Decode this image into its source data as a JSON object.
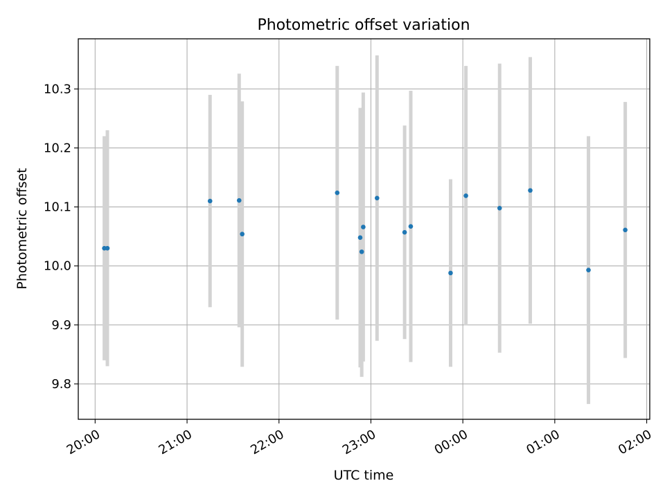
{
  "chart_data": {
    "type": "scatter",
    "title": "Photometric offset variation",
    "xlabel": "UTC time",
    "ylabel": "Photometric offset",
    "x_ticks": [
      "20:00",
      "21:00",
      "22:00",
      "23:00",
      "00:00",
      "01:00",
      "02:00"
    ],
    "y_ticks": [
      "9.8",
      "9.9",
      "10.0",
      "10.1",
      "10.2",
      "10.3"
    ],
    "xlim": [
      "19:49",
      "02:02"
    ],
    "ylim": [
      9.74,
      10.385
    ],
    "grid": true,
    "x": [
      "20:06",
      "20:08",
      "21:15",
      "21:34",
      "21:36",
      "22:38",
      "22:53",
      "22:54",
      "22:55",
      "23:04",
      "23:22",
      "23:26",
      "23:52",
      "00:02",
      "00:24",
      "00:44",
      "01:22",
      "01:46"
    ],
    "y": [
      10.03,
      10.03,
      10.11,
      10.111,
      10.054,
      10.124,
      10.048,
      10.024,
      10.066,
      10.115,
      10.057,
      10.067,
      9.988,
      10.119,
      10.098,
      10.128,
      9.993,
      10.061
    ],
    "y_err": [
      0.19,
      0.2,
      0.18,
      0.215,
      0.225,
      0.215,
      0.22,
      0.212,
      0.228,
      0.242,
      0.181,
      0.23,
      0.159,
      0.22,
      0.245,
      0.226,
      0.227,
      0.217
    ],
    "point_color": "#1f77b4",
    "errorbar_color": "#d3d3d3"
  }
}
